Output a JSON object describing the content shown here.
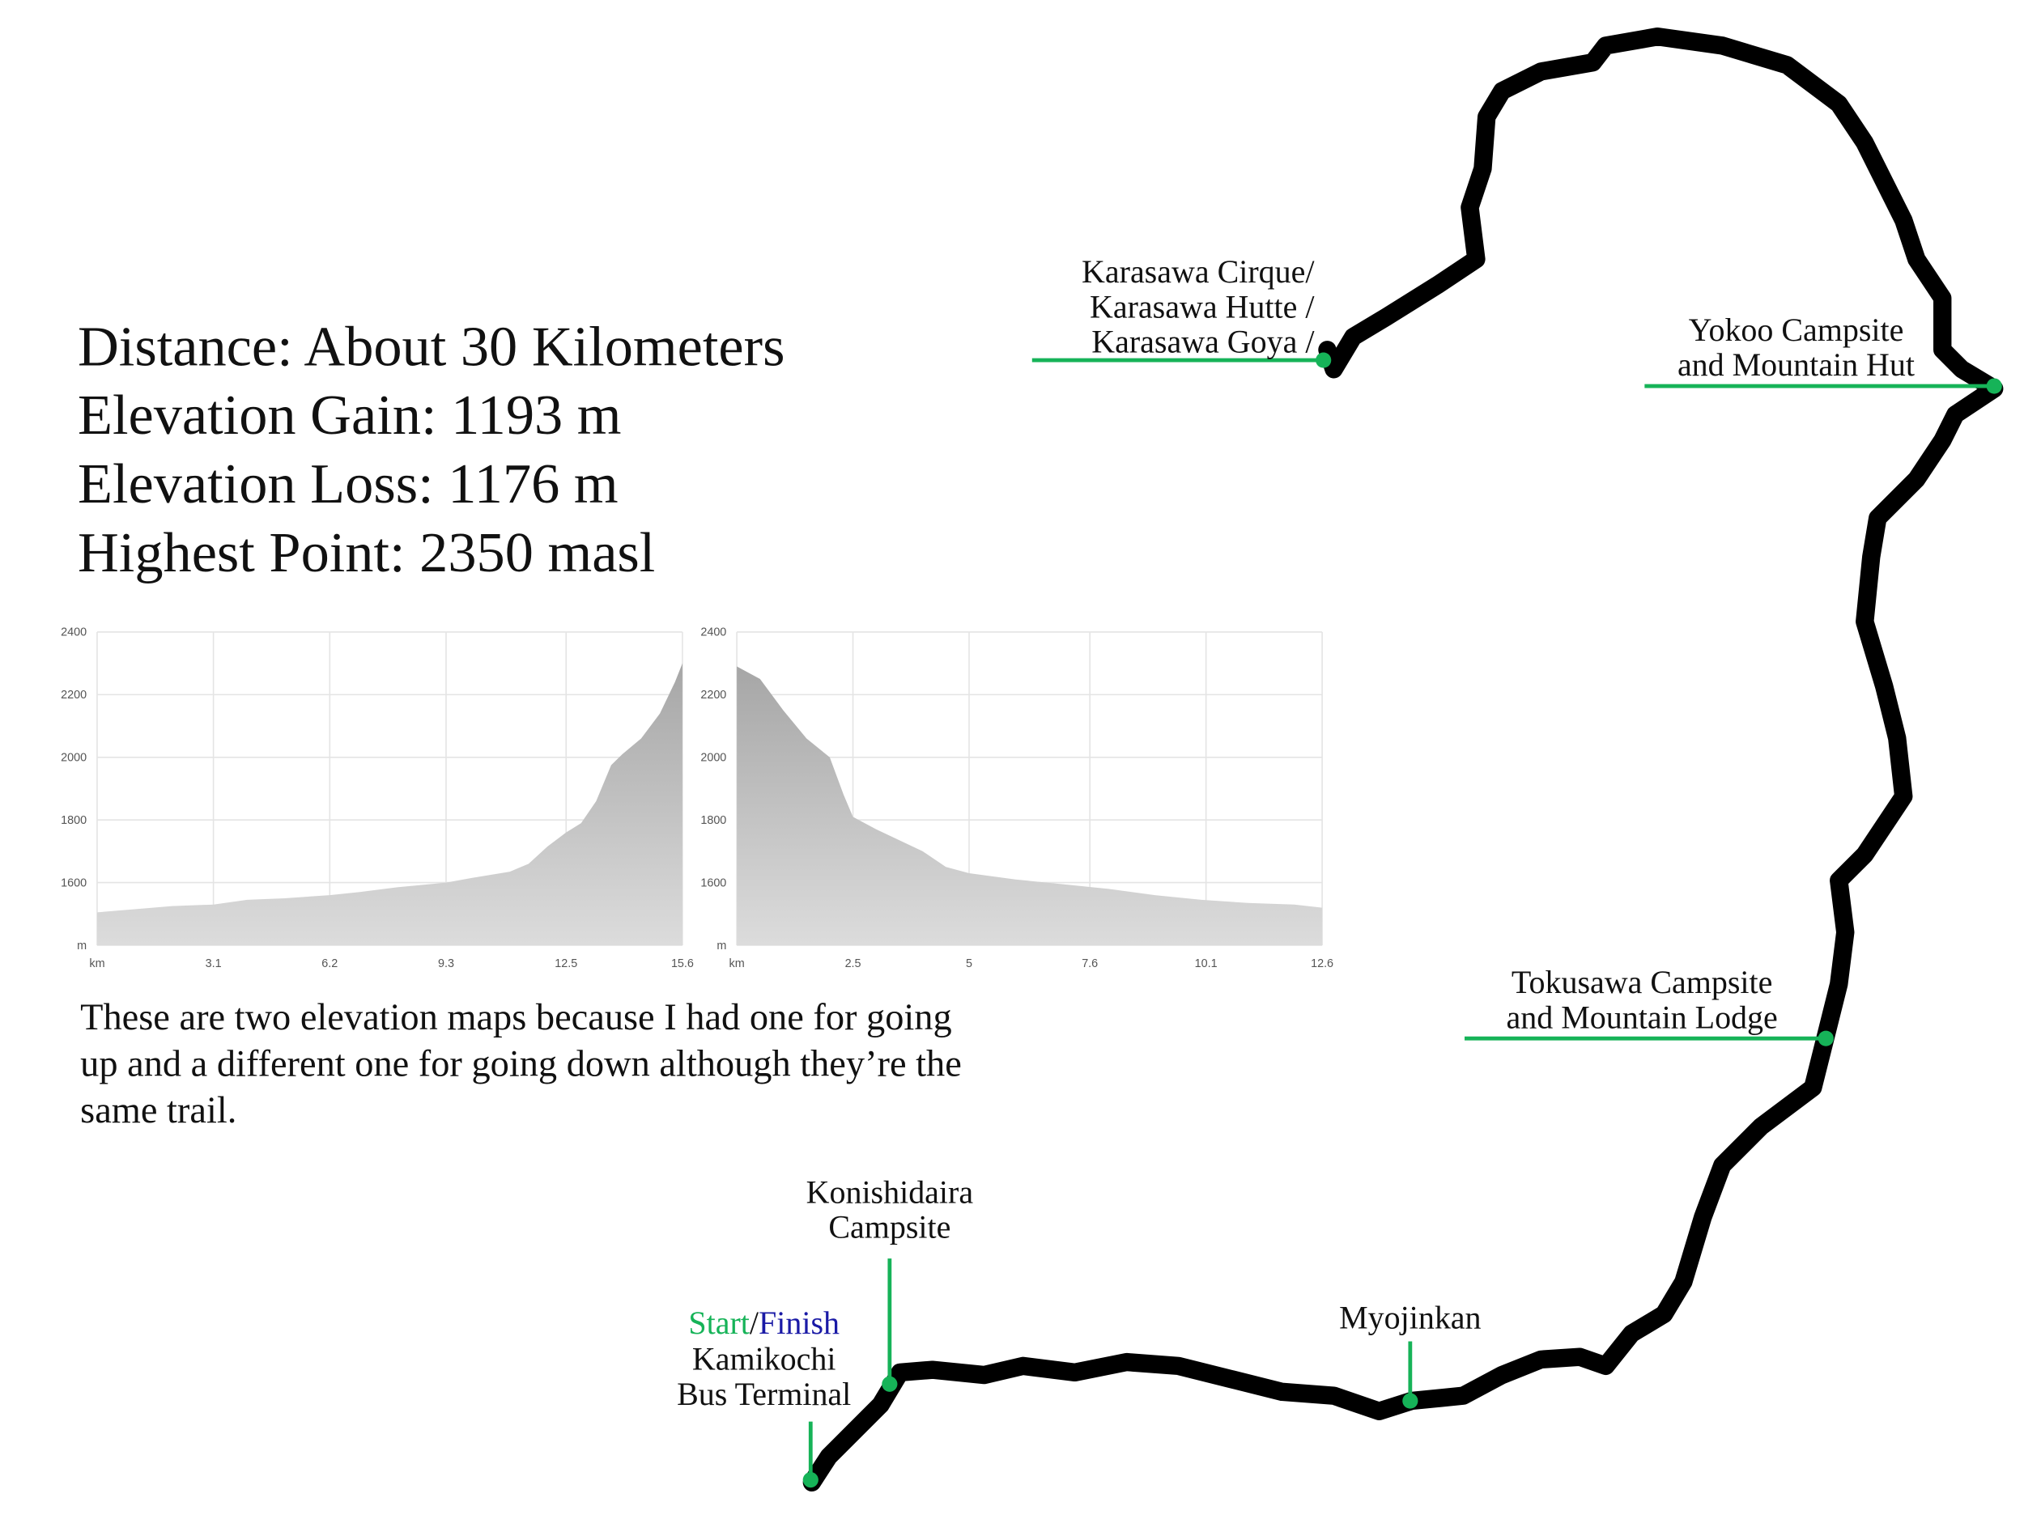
{
  "stats": [
    "Distance: About 30 Kilometers",
    "Elevation Gain: 1193 m",
    "Elevation Loss: 1176 m",
    "Highest Point: 2350 masl"
  ],
  "note": [
    "These are two elevation maps because I had one for going",
    "up and a different one for going down although they’re the",
    "same trail."
  ],
  "waypoints": [
    {
      "lines": [
        "Karasawa Cirque/",
        "Karasawa Hutte /",
        "Karasawa Goya /"
      ]
    },
    {
      "lines": [
        "Yokoo Campsite",
        "and Mountain Hut"
      ]
    },
    {
      "lines": [
        "Tokusawa Campsite",
        "and Mountain Lodge"
      ]
    },
    {
      "lines": [
        "Myojinkan"
      ]
    },
    {
      "lines": [
        "Konishidaira",
        "Campsite"
      ]
    },
    {
      "lines": [
        "Kamikochi",
        "Bus Terminal"
      ]
    }
  ],
  "start": {
    "start": "Start",
    "sep": "/",
    "finish": "Finish"
  },
  "chart_data": [
    {
      "type": "area",
      "color": "#a6a6a6",
      "grid": true,
      "x": [
        0,
        1,
        2,
        3.1,
        4,
        5,
        6.2,
        7,
        8,
        9.3,
        10,
        11,
        11.5,
        12,
        12.5,
        12.9,
        13.3,
        13.7,
        14,
        14.5,
        15,
        15.4,
        15.6
      ],
      "values": [
        1505,
        1515,
        1525,
        1530,
        1545,
        1550,
        1560,
        1570,
        1585,
        1600,
        1615,
        1635,
        1660,
        1715,
        1760,
        1790,
        1860,
        1975,
        2010,
        2060,
        2140,
        2240,
        2300
      ],
      "xlim": [
        0,
        15.6
      ],
      "ylim": [
        1400,
        2400
      ],
      "xticks": [
        {
          "value": 0,
          "label": "km"
        },
        3.1,
        6.2,
        9.3,
        12.5,
        15.6
      ],
      "yticks": [
        {
          "value": 1400,
          "label": "m"
        },
        1600,
        1800,
        2000,
        2200,
        2400
      ]
    },
    {
      "type": "area",
      "color": "#a6a6a6",
      "grid": true,
      "x": [
        0,
        0.5,
        1,
        1.5,
        2,
        2.3,
        2.5,
        3,
        4,
        4.5,
        5,
        6,
        7,
        8,
        9,
        10,
        11,
        12,
        12.6
      ],
      "values": [
        2290,
        2250,
        2150,
        2060,
        2000,
        1880,
        1810,
        1770,
        1700,
        1650,
        1630,
        1610,
        1595,
        1580,
        1560,
        1545,
        1535,
        1530,
        1520
      ],
      "xlim": [
        0,
        12.6
      ],
      "ylim": [
        1400,
        2400
      ],
      "xticks": [
        {
          "value": 0,
          "label": "km"
        },
        2.5,
        5.0,
        7.6,
        10.1,
        12.6
      ],
      "yticks": [
        {
          "value": 1400,
          "label": "m"
        },
        1600,
        1800,
        2000,
        2200,
        2400
      ]
    }
  ]
}
